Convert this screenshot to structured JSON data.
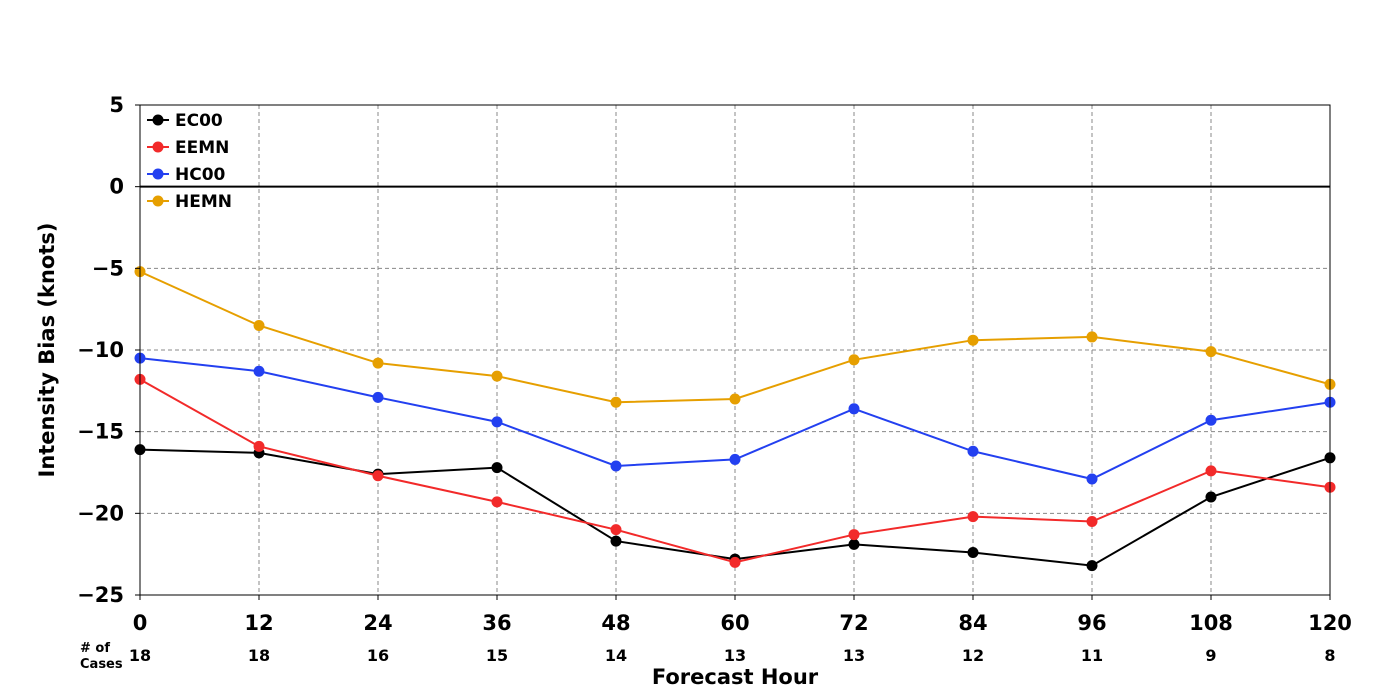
{
  "chart_data": {
    "type": "line",
    "title": "",
    "xlabel": "Forecast Hour",
    "ylabel": "Intensity Bias (knots)",
    "x": [
      0,
      12,
      24,
      36,
      48,
      60,
      72,
      84,
      96,
      108,
      120
    ],
    "xlim": [
      0,
      120
    ],
    "ylim": [
      -25,
      5
    ],
    "yticks": [
      5,
      0,
      -5,
      -10,
      -15,
      -20,
      -25
    ],
    "ytick_labels": [
      "5",
      "0",
      "−5",
      "−10",
      "−15",
      "−20",
      "−25"
    ],
    "grid": true,
    "legend_position": "top-left",
    "cases_label": "# of\nCases",
    "cases": [
      "18",
      "18",
      "16",
      "15",
      "14",
      "13",
      "13",
      "12",
      "11",
      "9",
      "8"
    ],
    "series": [
      {
        "name": "EC00",
        "color": "#000000",
        "values": [
          -16.1,
          -16.3,
          -17.6,
          -17.2,
          -21.7,
          -22.8,
          -21.9,
          -22.4,
          -23.2,
          -19.0,
          -16.6
        ]
      },
      {
        "name": "EEMN",
        "color": "#f22a2a",
        "values": [
          -11.8,
          -15.9,
          -17.7,
          -19.3,
          -21.0,
          -23.0,
          -21.3,
          -20.2,
          -20.5,
          -17.4,
          -18.4
        ]
      },
      {
        "name": "HC00",
        "color": "#2340f0",
        "values": [
          -10.5,
          -11.3,
          -12.9,
          -14.4,
          -17.1,
          -16.7,
          -13.6,
          -16.2,
          -17.9,
          -14.3,
          -13.2
        ]
      },
      {
        "name": "HEMN",
        "color": "#e69f00",
        "values": [
          -5.2,
          -8.5,
          -10.8,
          -11.6,
          -13.2,
          -13.0,
          -10.6,
          -9.4,
          -9.2,
          -10.1,
          -12.1
        ]
      }
    ]
  }
}
